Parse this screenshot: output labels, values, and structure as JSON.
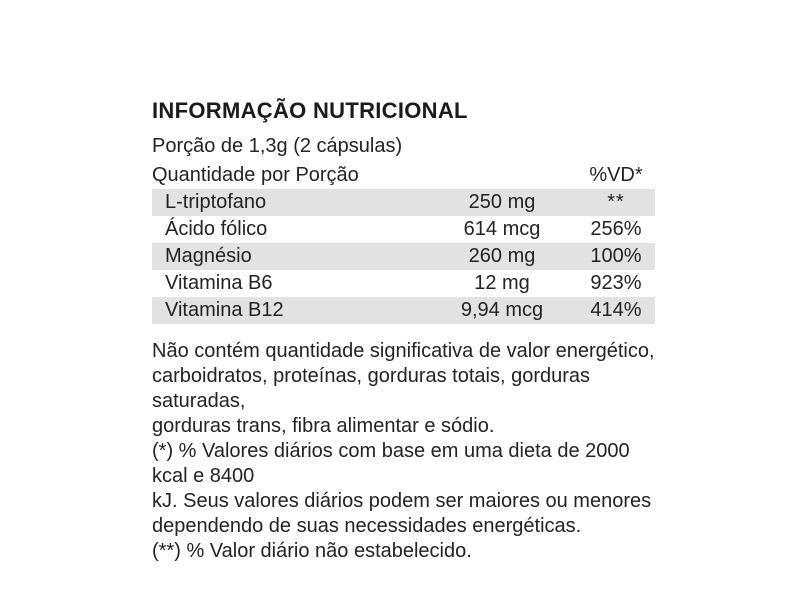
{
  "label": {
    "title": "INFORMAÇÃO NUTRICIONAL",
    "serving": "Porção de 1,3g (2 cápsulas)",
    "table": {
      "header_left": "Quantidade por Porção",
      "header_right": "%VD*",
      "rows": [
        {
          "name": "L-triptofano",
          "amount": "250 mg",
          "dv": "**"
        },
        {
          "name": "Ácido fólico",
          "amount": "614 mcg",
          "dv": "256%"
        },
        {
          "name": "Magnésio",
          "amount": "260 mg",
          "dv": "100%"
        },
        {
          "name": "Vitamina B6",
          "amount": "12 mg",
          "dv": "923%"
        },
        {
          "name": "Vitamina B12",
          "amount": "9,94 mcg",
          "dv": "414%"
        }
      ]
    },
    "footnote_lines": [
      "Não contém quantidade significativa de valor energético,",
      "carboidratos, proteínas, gorduras totais, gorduras saturadas,",
      "gorduras trans, fibra alimentar e sódio.",
      "(*) % Valores diários com base em uma dieta de 2000 kcal e 8400",
      "kJ. Seus valores diários podem ser maiores ou menores",
      "dependendo de suas necessidades energéticas.",
      "(**) % Valor diário não estabelecido."
    ],
    "colors": {
      "row_shade": "#e2e2e2",
      "text": "#232323",
      "background": "#ffffff"
    }
  }
}
